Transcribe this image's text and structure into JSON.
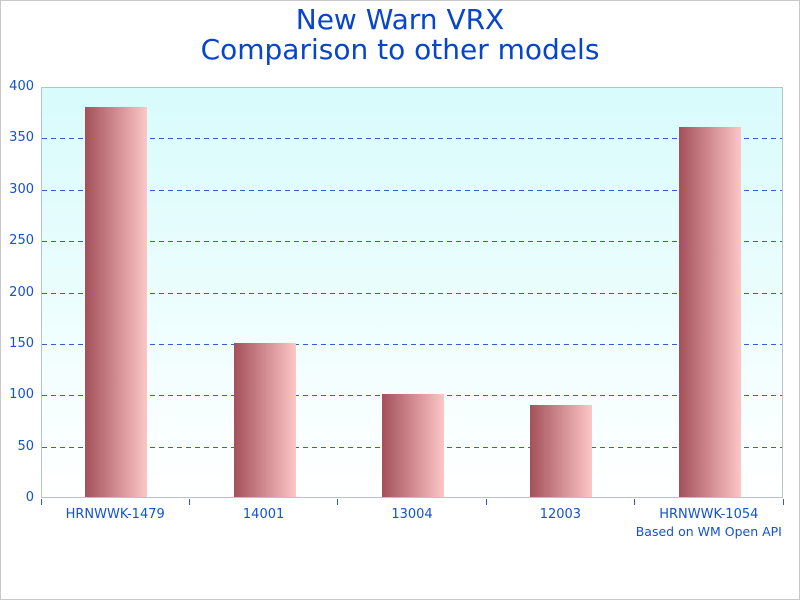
{
  "title": {
    "line1": "New Warn VRX",
    "line2": "Comparison to other models"
  },
  "footnote": "Based on WM Open API",
  "chart_data": {
    "type": "bar",
    "title": "New Warn VRX",
    "subtitle": "Comparison to other models",
    "categories": [
      "HRNWWK-1479",
      "14001",
      "13004",
      "12003",
      "HRNWWK-1054"
    ],
    "values": [
      380,
      150,
      100,
      90,
      360
    ],
    "xlabel": "",
    "ylabel": "",
    "ylim": [
      0,
      400
    ],
    "ytick_step": 50,
    "grid": "horizontal-dashed",
    "legend": "none",
    "annotation": "Based on WM Open API",
    "annotation_position": "below-last-category",
    "colors": {
      "title_text": "#0645cc",
      "axis_label_text": "#1553cb",
      "gridline": "#2f62cf",
      "tick": "#2a5fd0",
      "bar_gradient_left": "#a4505a",
      "bar_gradient_right": "#fdc6c6",
      "plot_bg_top": "#d8fbfc",
      "plot_bg_bottom": "#ffffff",
      "plot_border": "#b6c3c7",
      "outer_border": "#c9c9c9"
    }
  }
}
